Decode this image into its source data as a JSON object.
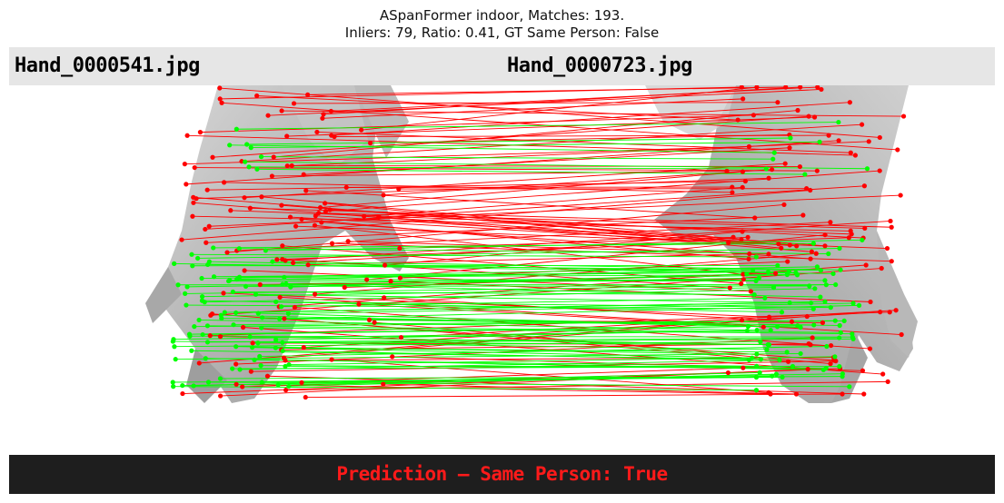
{
  "figure": {
    "title_line1": "ASpanFormer indoor, Matches: 193.",
    "title_line2": "Inliers: 79, Ratio: 0.41, GT Same Person: False"
  },
  "images": {
    "left_filename": "Hand_0000541.jpg",
    "right_filename": "Hand_0000723.jpg"
  },
  "prediction": {
    "text": "Prediction — Same Person: True"
  },
  "colors": {
    "inlier": "#00ff00",
    "outlier": "#ff0000",
    "prediction_text": "#ff1a1a",
    "label_bar": "#e6e6e6",
    "bottom_bar": "#1e1e1e"
  },
  "icons": [
    "left-hand-image",
    "right-hand-image"
  ]
}
